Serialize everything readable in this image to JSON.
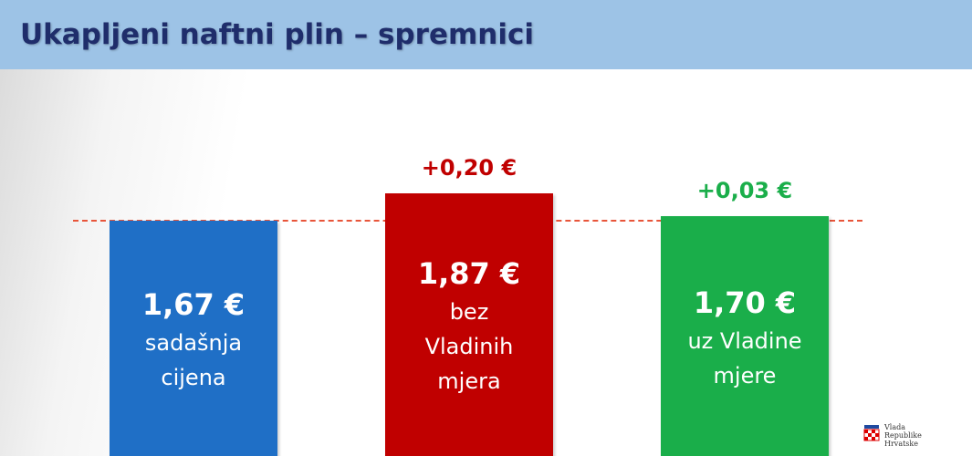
{
  "chart_data": {
    "type": "bar",
    "title": "Ukapljeni naftni plin – spremnici",
    "categories": [
      "sadašnja\ncijena",
      "bez\nVladinih\nmjera",
      "uz Vladine\nmjere"
    ],
    "values": [
      1.67,
      1.87,
      1.7
    ],
    "value_labels": [
      "1,67 €",
      "1,87 €",
      "1,70 €"
    ],
    "colors": [
      "#1f6fc6",
      "#c00000",
      "#1aae4a"
    ],
    "annotations": [
      null,
      "+0,20 €",
      "+0,03 €"
    ],
    "ylim": [
      0,
      2
    ]
  },
  "logo_text": "Vlada\nRepublike\nHrvatske"
}
